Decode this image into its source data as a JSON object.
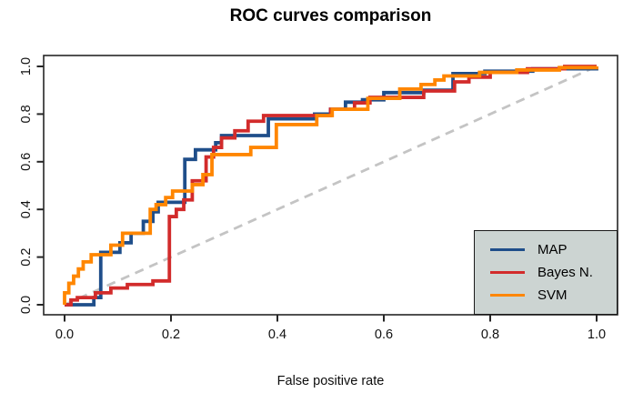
{
  "chart_data": {
    "type": "line",
    "subtype": "roc-step-curves",
    "title": "ROC curves comparison",
    "xlabel": "False positive rate",
    "ylabel": "",
    "xlim": [
      0,
      1
    ],
    "ylim": [
      0,
      1
    ],
    "xticks": [
      "0.0",
      "0.2",
      "0.4",
      "0.6",
      "0.8",
      "1.0"
    ],
    "yticks": [
      "0.0",
      "0.2",
      "0.4",
      "0.6",
      "0.8",
      "1.0"
    ],
    "grid": false,
    "frame_color": "#262626",
    "tick_color": "#262626",
    "tick_text_color": "#111111",
    "reference_line": {
      "name": "chance-diagonal",
      "style": "dashed",
      "color": "#c4c4c4",
      "from": [
        0,
        0
      ],
      "to": [
        1,
        1
      ]
    },
    "legend": {
      "position": "bottomright",
      "background": "#ccd4d2",
      "border_color": "#1a1a1a",
      "entries": [
        {
          "label": "MAP",
          "color": "#1f4e8a"
        },
        {
          "label": "Bayes N.",
          "color": "#d22b2b"
        },
        {
          "label": "SVM",
          "color": "#ff8600"
        }
      ]
    },
    "series": [
      {
        "name": "MAP",
        "color": "#1f4e8a",
        "points": [
          [
            0,
            0
          ],
          [
            0.055,
            0
          ],
          [
            0.055,
            0.03
          ],
          [
            0.068,
            0.03
          ],
          [
            0.068,
            0.22
          ],
          [
            0.104,
            0.22
          ],
          [
            0.104,
            0.26
          ],
          [
            0.125,
            0.26
          ],
          [
            0.125,
            0.3
          ],
          [
            0.148,
            0.3
          ],
          [
            0.148,
            0.35
          ],
          [
            0.166,
            0.35
          ],
          [
            0.166,
            0.39
          ],
          [
            0.176,
            0.39
          ],
          [
            0.176,
            0.43
          ],
          [
            0.226,
            0.43
          ],
          [
            0.226,
            0.61
          ],
          [
            0.246,
            0.61
          ],
          [
            0.246,
            0.65
          ],
          [
            0.284,
            0.65
          ],
          [
            0.284,
            0.68
          ],
          [
            0.295,
            0.68
          ],
          [
            0.295,
            0.71
          ],
          [
            0.383,
            0.71
          ],
          [
            0.383,
            0.78
          ],
          [
            0.47,
            0.78
          ],
          [
            0.47,
            0.8
          ],
          [
            0.5,
            0.8
          ],
          [
            0.5,
            0.82
          ],
          [
            0.528,
            0.82
          ],
          [
            0.528,
            0.85
          ],
          [
            0.56,
            0.85
          ],
          [
            0.56,
            0.86
          ],
          [
            0.6,
            0.86
          ],
          [
            0.6,
            0.89
          ],
          [
            0.675,
            0.89
          ],
          [
            0.675,
            0.9
          ],
          [
            0.73,
            0.9
          ],
          [
            0.73,
            0.97
          ],
          [
            0.79,
            0.97
          ],
          [
            0.79,
            0.98
          ],
          [
            0.88,
            0.98
          ],
          [
            0.88,
            0.99
          ],
          [
            1,
            0.99
          ],
          [
            1,
            1
          ]
        ]
      },
      {
        "name": "Bayes N.",
        "color": "#d22b2b",
        "points": [
          [
            0,
            0
          ],
          [
            0.012,
            0
          ],
          [
            0.012,
            0.02
          ],
          [
            0.024,
            0.02
          ],
          [
            0.024,
            0.03
          ],
          [
            0.058,
            0.03
          ],
          [
            0.058,
            0.05
          ],
          [
            0.087,
            0.05
          ],
          [
            0.087,
            0.07
          ],
          [
            0.118,
            0.07
          ],
          [
            0.118,
            0.085
          ],
          [
            0.166,
            0.085
          ],
          [
            0.166,
            0.1
          ],
          [
            0.197,
            0.1
          ],
          [
            0.197,
            0.37
          ],
          [
            0.21,
            0.37
          ],
          [
            0.21,
            0.4
          ],
          [
            0.224,
            0.4
          ],
          [
            0.224,
            0.44
          ],
          [
            0.24,
            0.44
          ],
          [
            0.24,
            0.52
          ],
          [
            0.266,
            0.52
          ],
          [
            0.266,
            0.62
          ],
          [
            0.28,
            0.62
          ],
          [
            0.28,
            0.66
          ],
          [
            0.295,
            0.66
          ],
          [
            0.295,
            0.7
          ],
          [
            0.32,
            0.7
          ],
          [
            0.32,
            0.73
          ],
          [
            0.345,
            0.73
          ],
          [
            0.345,
            0.77
          ],
          [
            0.374,
            0.77
          ],
          [
            0.374,
            0.794
          ],
          [
            0.5,
            0.794
          ],
          [
            0.5,
            0.82
          ],
          [
            0.545,
            0.82
          ],
          [
            0.545,
            0.847
          ],
          [
            0.574,
            0.847
          ],
          [
            0.574,
            0.87
          ],
          [
            0.675,
            0.87
          ],
          [
            0.675,
            0.897
          ],
          [
            0.733,
            0.897
          ],
          [
            0.733,
            0.935
          ],
          [
            0.76,
            0.935
          ],
          [
            0.76,
            0.955
          ],
          [
            0.8,
            0.955
          ],
          [
            0.8,
            0.975
          ],
          [
            0.87,
            0.975
          ],
          [
            0.87,
            0.99
          ],
          [
            0.94,
            0.99
          ],
          [
            0.94,
            1
          ],
          [
            1,
            1
          ]
        ]
      },
      {
        "name": "SVM",
        "color": "#ff8600",
        "points": [
          [
            0,
            0
          ],
          [
            0,
            0.05
          ],
          [
            0.008,
            0.05
          ],
          [
            0.008,
            0.09
          ],
          [
            0.017,
            0.09
          ],
          [
            0.017,
            0.12
          ],
          [
            0.026,
            0.12
          ],
          [
            0.026,
            0.15
          ],
          [
            0.035,
            0.15
          ],
          [
            0.035,
            0.18
          ],
          [
            0.05,
            0.18
          ],
          [
            0.05,
            0.21
          ],
          [
            0.087,
            0.21
          ],
          [
            0.087,
            0.25
          ],
          [
            0.109,
            0.25
          ],
          [
            0.109,
            0.3
          ],
          [
            0.161,
            0.3
          ],
          [
            0.161,
            0.4
          ],
          [
            0.172,
            0.4
          ],
          [
            0.172,
            0.42
          ],
          [
            0.19,
            0.42
          ],
          [
            0.19,
            0.45
          ],
          [
            0.203,
            0.45
          ],
          [
            0.203,
            0.477
          ],
          [
            0.24,
            0.477
          ],
          [
            0.24,
            0.504
          ],
          [
            0.26,
            0.504
          ],
          [
            0.26,
            0.546
          ],
          [
            0.277,
            0.546
          ],
          [
            0.277,
            0.63
          ],
          [
            0.35,
            0.63
          ],
          [
            0.35,
            0.66
          ],
          [
            0.398,
            0.66
          ],
          [
            0.398,
            0.756
          ],
          [
            0.474,
            0.756
          ],
          [
            0.474,
            0.794
          ],
          [
            0.503,
            0.794
          ],
          [
            0.503,
            0.82
          ],
          [
            0.57,
            0.82
          ],
          [
            0.57,
            0.866
          ],
          [
            0.63,
            0.866
          ],
          [
            0.63,
            0.905
          ],
          [
            0.67,
            0.905
          ],
          [
            0.67,
            0.924
          ],
          [
            0.696,
            0.924
          ],
          [
            0.696,
            0.943
          ],
          [
            0.713,
            0.943
          ],
          [
            0.713,
            0.96
          ],
          [
            0.78,
            0.96
          ],
          [
            0.78,
            0.975
          ],
          [
            0.85,
            0.975
          ],
          [
            0.85,
            0.985
          ],
          [
            0.93,
            0.985
          ],
          [
            0.93,
            0.995
          ],
          [
            1,
            0.995
          ],
          [
            1,
            1
          ]
        ]
      }
    ]
  }
}
